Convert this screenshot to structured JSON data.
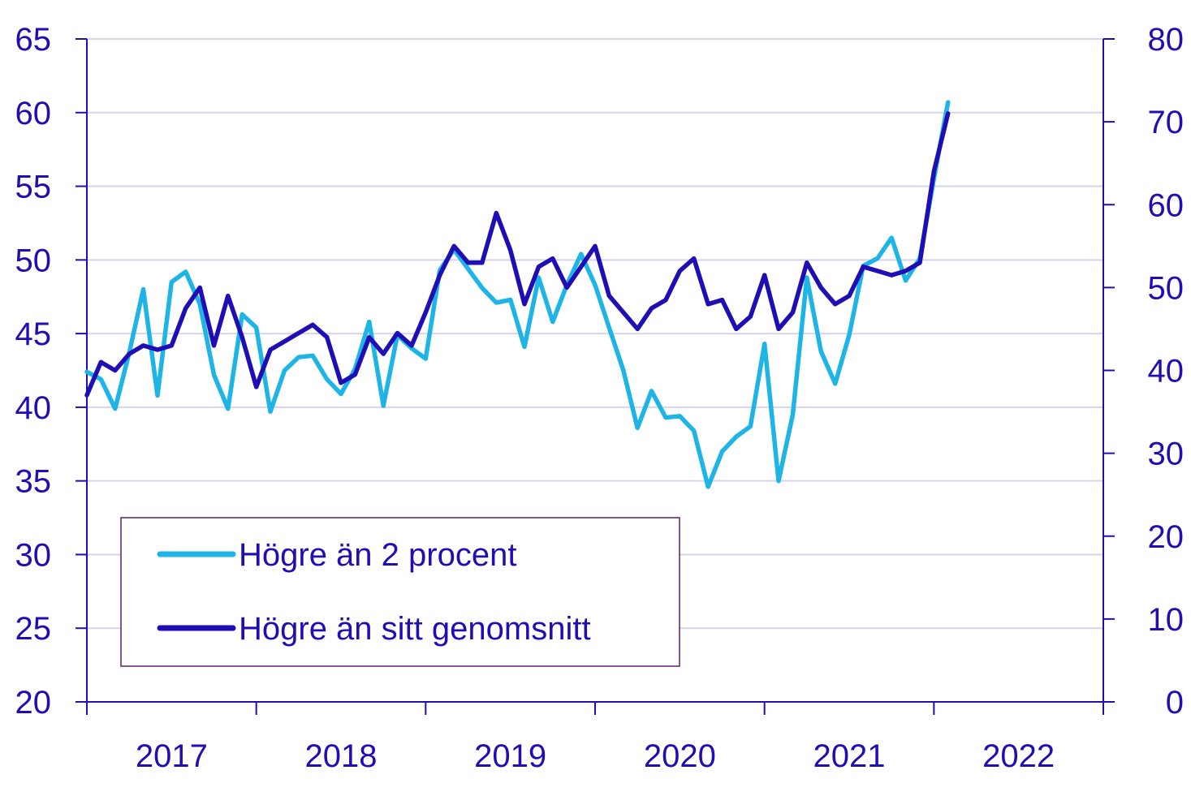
{
  "chart_data": {
    "type": "line",
    "x_categories": [
      "2017",
      "2018",
      "2019",
      "2020",
      "2021",
      "2022"
    ],
    "y_left": {
      "ylim": [
        20,
        65
      ],
      "ticks": [
        "20",
        "25",
        "30",
        "35",
        "40",
        "45",
        "50",
        "55",
        "60",
        "65"
      ]
    },
    "y_right": {
      "ylim": [
        0,
        80
      ],
      "ticks": [
        "0",
        "10",
        "20",
        "30",
        "40",
        "50",
        "60",
        "70",
        "80"
      ]
    },
    "grid": true,
    "legend_position": "bottom-left",
    "colors": {
      "axis": "#1e0eb4",
      "grid": "#d6d4ec",
      "light_series": "#1eb4e6",
      "dark_series": "#1e0eb4"
    },
    "series": [
      {
        "name": "Högre än 2 procent",
        "axis": "left",
        "x": [
          2017.0,
          2017.083,
          2017.167,
          2017.25,
          2017.333,
          2017.417,
          2017.5,
          2017.583,
          2017.667,
          2017.75,
          2017.833,
          2017.917,
          2018.0,
          2018.083,
          2018.167,
          2018.25,
          2018.333,
          2018.417,
          2018.5,
          2018.583,
          2018.667,
          2018.75,
          2018.833,
          2018.917,
          2019.0,
          2019.083,
          2019.167,
          2019.25,
          2019.333,
          2019.417,
          2019.5,
          2019.583,
          2019.667,
          2019.75,
          2019.833,
          2019.917,
          2020.0,
          2020.083,
          2020.167,
          2020.25,
          2020.333,
          2020.417,
          2020.5,
          2020.583,
          2020.667,
          2020.75,
          2020.833,
          2020.917,
          2021.0,
          2021.083,
          2021.167,
          2021.25,
          2021.333,
          2021.417,
          2021.5,
          2021.583,
          2021.667,
          2021.75,
          2021.833,
          2021.917,
          2022.0,
          2022.083
        ],
        "values": [
          42.4,
          41.9,
          39.9,
          43.7,
          48.0,
          40.8,
          48.5,
          49.2,
          47.0,
          42.2,
          39.9,
          46.3,
          45.4,
          39.7,
          42.5,
          43.4,
          43.5,
          41.9,
          40.9,
          42.6,
          45.8,
          40.1,
          44.9,
          44.0,
          43.3,
          49.3,
          50.7,
          49.4,
          48.1,
          47.1,
          47.3,
          44.1,
          48.8,
          45.8,
          48.3,
          50.4,
          48.3,
          45.4,
          42.5,
          38.6,
          41.1,
          39.3,
          39.4,
          38.4,
          34.6,
          37.0,
          38.0,
          38.7,
          44.3,
          35.0,
          39.5,
          48.8,
          43.8,
          41.6,
          44.9,
          49.6,
          50.1,
          51.5,
          48.6,
          50.1,
          55.5,
          60.7
        ]
      },
      {
        "name": "Högre än sitt genomsnitt",
        "axis": "right",
        "x": [
          2017.0,
          2017.083,
          2017.167,
          2017.25,
          2017.333,
          2017.417,
          2017.5,
          2017.583,
          2017.667,
          2017.75,
          2017.833,
          2017.917,
          2018.0,
          2018.083,
          2018.167,
          2018.25,
          2018.333,
          2018.417,
          2018.5,
          2018.583,
          2018.667,
          2018.75,
          2018.833,
          2018.917,
          2019.0,
          2019.083,
          2019.167,
          2019.25,
          2019.333,
          2019.417,
          2019.5,
          2019.583,
          2019.667,
          2019.75,
          2019.833,
          2019.917,
          2020.0,
          2020.083,
          2020.167,
          2020.25,
          2020.333,
          2020.417,
          2020.5,
          2020.583,
          2020.667,
          2020.75,
          2020.833,
          2020.917,
          2021.0,
          2021.083,
          2021.167,
          2021.25,
          2021.333,
          2021.417,
          2021.5,
          2021.583,
          2021.667,
          2021.75,
          2021.833,
          2021.917,
          2022.0,
          2022.083
        ],
        "values": [
          37.0,
          41.0,
          40.0,
          42.0,
          43.0,
          42.5,
          43.0,
          47.5,
          50.0,
          43.0,
          49.0,
          44.0,
          38.0,
          42.5,
          43.5,
          44.5,
          45.5,
          44.0,
          38.5,
          39.5,
          44.0,
          42.0,
          44.5,
          43.0,
          47.0,
          51.5,
          55.0,
          53.0,
          53.0,
          59.0,
          54.5,
          48.0,
          52.5,
          53.5,
          50.0,
          52.5,
          55.0,
          49.0,
          47.0,
          45.0,
          47.5,
          48.5,
          52.0,
          53.5,
          48.0,
          48.5,
          45.0,
          46.5,
          51.5,
          45.0,
          47.0,
          53.0,
          50.0,
          48.0,
          49.0,
          52.5,
          52.0,
          51.5,
          52.0,
          53.0,
          64.0,
          71.0
        ]
      }
    ]
  }
}
